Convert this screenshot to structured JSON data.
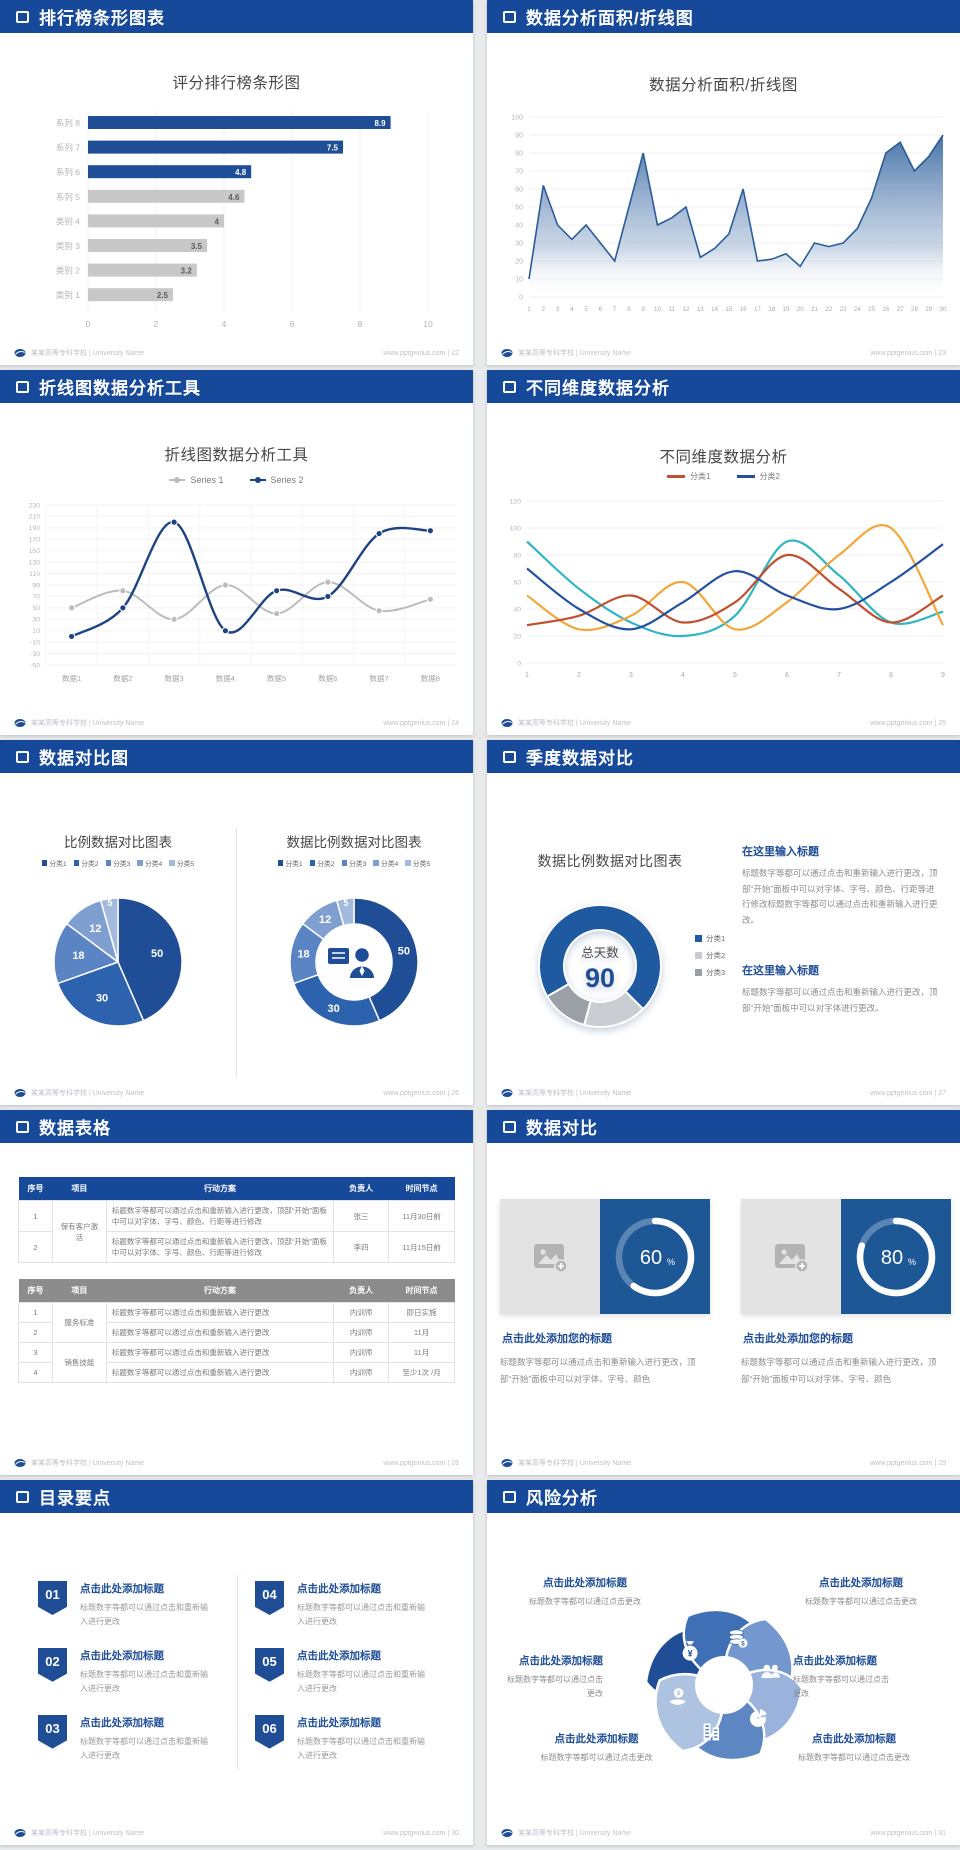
{
  "footer": {
    "school": "某某高等专科学校 | University Name",
    "site": "www.pptgenius.com",
    "sep": " | "
  },
  "colors": {
    "header_blue": "#17499b",
    "accent_blue": "#1f4e96",
    "bar_gray": "#c8c8c8",
    "pie_blues": [
      "#1f4e96",
      "#2d62ae",
      "#5b84c4",
      "#7f9fd1",
      "#a3bade"
    ],
    "donut3": [
      "#1f5aa0",
      "#c9cdd1",
      "#9aa0a6"
    ],
    "petals": [
      "#1f4e96",
      "#3f6fb5",
      "#7397ce",
      "#9ab3dc",
      "#5d87c3",
      "#aec2e2"
    ]
  },
  "slides": [
    {
      "header": "排行榜条形图表",
      "page": "22",
      "chart_data": {
        "type": "bar",
        "orientation": "horizontal",
        "title": "评分排行榜条形图",
        "categories": [
          "系列 8",
          "系列 7",
          "系列 6",
          "系列 5",
          "类别 4",
          "类别 3",
          "类别 2",
          "类别 1"
        ],
        "values": [
          8.9,
          7.5,
          4.8,
          4.6,
          4,
          3.5,
          3.2,
          2.5
        ],
        "bar_colors": [
          "blue",
          "blue",
          "blue",
          "gray",
          "gray",
          "gray",
          "gray",
          "gray"
        ],
        "xlim": [
          0,
          10
        ],
        "xticks": [
          0,
          2,
          4,
          6,
          8,
          10
        ],
        "grid": true
      }
    },
    {
      "header": "数据分析面积/折线图",
      "page": "23",
      "chart_data": {
        "type": "area",
        "title": "数据分析面积/折线图",
        "x": [
          1,
          2,
          3,
          4,
          5,
          6,
          7,
          8,
          9,
          10,
          11,
          12,
          13,
          14,
          15,
          16,
          17,
          18,
          19,
          20,
          21,
          22,
          23,
          24,
          25,
          26,
          27,
          28,
          29,
          30
        ],
        "values": [
          10,
          62,
          40,
          32,
          40,
          30,
          20,
          50,
          80,
          40,
          44,
          50,
          22,
          27,
          35,
          60,
          20,
          21,
          24,
          17,
          30,
          28,
          30,
          38,
          55,
          80,
          86,
          70,
          78,
          90
        ],
        "ylim": [
          0,
          100
        ],
        "yticks": [
          0,
          10,
          20,
          30,
          40,
          50,
          60,
          70,
          80,
          90,
          100
        ],
        "grid": true
      }
    },
    {
      "header": "折线图数据分析工具",
      "page": "24",
      "chart_data": {
        "type": "line",
        "title": "折线图数据分析工具",
        "categories": [
          "数据1",
          "数据2",
          "数据3",
          "数据4",
          "数据5",
          "数据6",
          "数据7",
          "数据8"
        ],
        "series": [
          {
            "name": "Series 1",
            "color": "#bcbcbc",
            "values": [
              50,
              80,
              30,
              90,
              40,
              95,
              45,
              65
            ]
          },
          {
            "name": "Series 2",
            "color": "#1e4383",
            "values": [
              0,
              50,
              200,
              10,
              80,
              70,
              180,
              185
            ]
          }
        ],
        "ylim": [
          -50,
          230
        ],
        "ytick_step": 20,
        "legend_position": "top",
        "grid": true
      }
    },
    {
      "header": "不同维度数据分析",
      "page": "25",
      "chart_data": {
        "type": "line",
        "title": "不同维度数据分析",
        "x": [
          1,
          2,
          3,
          4,
          5,
          6,
          7,
          8,
          9
        ],
        "series": [
          {
            "name": "分类1",
            "color": "#c0502f",
            "values": [
              28,
              35,
              50,
              30,
              45,
              80,
              55,
              30,
              50
            ]
          },
          {
            "name": "分类2",
            "color": "#2350a0",
            "values": [
              70,
              40,
              25,
              45,
              68,
              50,
              40,
              60,
              88
            ]
          },
          {
            "name": "",
            "color": "#2fb5c4",
            "values": [
              90,
              55,
              30,
              20,
              35,
              90,
              65,
              30,
              38
            ]
          },
          {
            "name": "",
            "color": "#f2a73b",
            "values": [
              50,
              25,
              35,
              60,
              25,
              45,
              80,
              100,
              28
            ]
          }
        ],
        "legend": [
          "分类1",
          "分类2"
        ],
        "ylim": [
          0,
          120
        ],
        "ytick_step": 20,
        "grid": true
      }
    },
    {
      "header": "数据对比图",
      "page": "26",
      "chart_data": [
        {
          "type": "pie",
          "title": "比例数据对比图表",
          "labels": [
            "分类1",
            "分类2",
            "分类3",
            "分类4",
            "分类5"
          ],
          "values": [
            50,
            30,
            18,
            12,
            5
          ]
        },
        {
          "type": "donut",
          "title": "数据比例数据对比图表",
          "labels": [
            "分类1",
            "分类2",
            "分类3",
            "分类4",
            "分类5"
          ],
          "values": [
            50,
            30,
            18,
            12,
            5
          ],
          "center_icon": "presenter-icon"
        }
      ]
    },
    {
      "header": "季度数据对比",
      "page": "27",
      "chart_data": {
        "type": "donut",
        "title": "数据比例数据对比图表",
        "labels": [
          "分类1",
          "分类2",
          "分类3"
        ],
        "values": [
          71,
          17,
          12
        ],
        "center_label": "总天数",
        "center_value": "90"
      },
      "blocks": [
        {
          "title": "在这里输入标题",
          "body": "标题数字等都可以通过点击和重新输入进行更改，顶部“开始”面板中可以对字体、字号、颜色、行距等进行修改标题数字等都可以通过点击和重新输入进行更改。"
        },
        {
          "title": "在这里输入标题",
          "body": "标题数字等都可以通过点击和重新输入进行更改，顶部“开始”面板中可以对字体进行更改。"
        }
      ]
    },
    {
      "header": "数据表格",
      "page": "28",
      "tables": [
        {
          "style": "blue",
          "columns": [
            "序号",
            "项目",
            "行动方案",
            "负责人",
            "时间节点"
          ],
          "rows": [
            {
              "no": "1",
              "item": "保有客户激活",
              "item_span": 2,
              "plan": "标题数字等都可以通过点击和重新输入进行更改，顶部“开始”面板中可以对字体、字号、颜色、行距等进行修改",
              "owner": "张三",
              "time": "11月30日前"
            },
            {
              "no": "2",
              "plan": "标题数字等都可以通过点击和重新输入进行更改，顶部“开始”面板中可以对字体、字号、颜色、行距等进行修改",
              "owner": "李四",
              "time": "11月15日前"
            }
          ]
        },
        {
          "style": "gray",
          "columns": [
            "序号",
            "项目",
            "行动方案",
            "负责人",
            "时间节点"
          ],
          "rows": [
            {
              "no": "1",
              "item": "服务标准",
              "item_span": 2,
              "plan": "标题数字等都可以通过点击和重新输入进行更改",
              "owner": "内训师",
              "time": "即日实施"
            },
            {
              "no": "2",
              "plan": "标题数字等都可以通过点击和重新输入进行更改",
              "owner": "内训师",
              "time": "11月"
            },
            {
              "no": "3",
              "item": "销售技能",
              "item_span": 2,
              "plan": "标题数字等都可以通过点击和重新输入进行更改",
              "owner": "内训师",
              "time": "11月"
            },
            {
              "no": "4",
              "plan": "标题数字等都可以通过点击和重新输入进行更改",
              "owner": "内训师",
              "time": "至少1次 /月"
            }
          ]
        }
      ]
    },
    {
      "header": "数据对比",
      "page": "29",
      "cards": [
        {
          "percent": 60,
          "title": "点击此处添加您的标题",
          "body": "标题数字等都可以通过点击和重新输入进行更改，顶部“开始”面板中可以对字体、字号、颜色"
        },
        {
          "percent": 80,
          "title": "点击此处添加您的标题",
          "body": "标题数字等都可以通过点击和重新输入进行更改，顶部“开始”面板中可以对字体、字号、颜色"
        }
      ]
    },
    {
      "header": "目录要点",
      "page": "30",
      "items": [
        {
          "num": "01",
          "title": "点击此处添加标题",
          "body": "标题数字等都可以通过点击和重新输入进行更改"
        },
        {
          "num": "02",
          "title": "点击此处添加标题",
          "body": "标题数字等都可以通过点击和重新输入进行更改"
        },
        {
          "num": "03",
          "title": "点击此处添加标题",
          "body": "标题数字等都可以通过点击和重新输入进行更改"
        },
        {
          "num": "04",
          "title": "点击此处添加标题",
          "body": "标题数字等都可以通过点击和重新输入进行更改"
        },
        {
          "num": "05",
          "title": "点击此处添加标题",
          "body": "标题数字等都可以通过点击和重新输入进行更改"
        },
        {
          "num": "06",
          "title": "点击此处添加标题",
          "body": "标题数字等都可以通过点击和重新输入进行更改"
        }
      ]
    },
    {
      "header": "风险分析",
      "page": "31",
      "labels": [
        {
          "title": "点击此处添加标题",
          "body": "标题数字等都可以通过点击更改"
        },
        {
          "title": "点击此处添加标题",
          "body": "标题数字等都可以通过点击更改"
        },
        {
          "title": "点击此处添加标题",
          "body": "标题数字等都可以通过点击更改"
        },
        {
          "title": "点击此处添加标题",
          "body": "标题数字等都可以通过点击更改"
        },
        {
          "title": "点击此处添加标题",
          "body": "标题数字等都可以通过点击更改"
        },
        {
          "title": "点击此处添加标题",
          "body": "标题数字等都可以通过点击更改"
        }
      ],
      "icons": [
        "money-bag-icon",
        "coins-icon",
        "users-icon",
        "pie-chart-icon",
        "building-icon",
        "hand-coin-icon"
      ]
    }
  ]
}
